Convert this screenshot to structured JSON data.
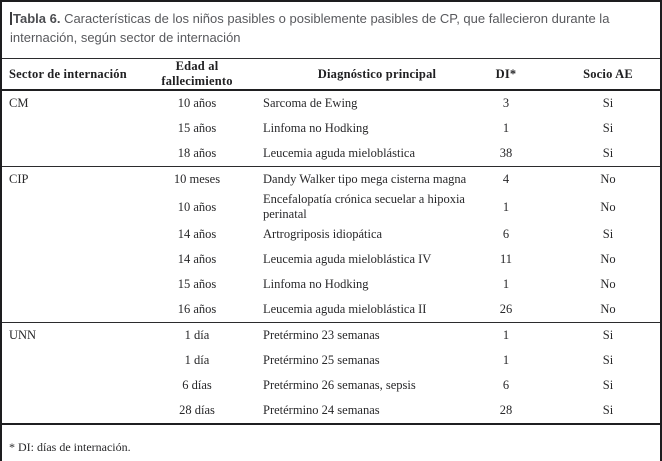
{
  "title": {
    "label": "Tabla 6.",
    "text": " Características de los niños pasibles o posiblemente pasibles de CP, que fallecieron durante la internación, según sector de internación"
  },
  "table": {
    "columns": [
      "Sector de internación",
      "Edad al fallecimiento",
      "Diagnóstico principal",
      "DI*",
      "Socio AE"
    ],
    "sections": [
      {
        "sector": "CM",
        "rows": [
          {
            "edad": "10 años",
            "diagnostico": "Sarcoma de Ewing",
            "di": "3",
            "socio": "Si"
          },
          {
            "edad": "15 años",
            "diagnostico": "Linfoma no Hodking",
            "di": "1",
            "socio": "Si"
          },
          {
            "edad": "18 años",
            "diagnostico": "Leucemia aguda mieloblástica",
            "di": "38",
            "socio": "Si"
          }
        ]
      },
      {
        "sector": "CIP",
        "rows": [
          {
            "edad": "10 meses",
            "diagnostico": "Dandy Walker tipo mega cisterna magna",
            "di": "4",
            "socio": "No"
          },
          {
            "edad": "10 años",
            "diagnostico": "Encefalopatía crónica secuelar a hipoxia perinatal",
            "di": "1",
            "socio": "No"
          },
          {
            "edad": "14 años",
            "diagnostico": "Artrogriposis idiopática",
            "di": "6",
            "socio": "Si"
          },
          {
            "edad": "14 años",
            "diagnostico": "Leucemia aguda mieloblástica IV",
            "di": "11",
            "socio": "No"
          },
          {
            "edad": "15 años",
            "diagnostico": "Linfoma no Hodking",
            "di": "1",
            "socio": "No"
          },
          {
            "edad": "16 años",
            "diagnostico": "Leucemia aguda mieloblástica II",
            "di": "26",
            "socio": "No"
          }
        ]
      },
      {
        "sector": "UNN",
        "rows": [
          {
            "edad": "1 día",
            "diagnostico": "Pretérmino 23 semanas",
            "di": "1",
            "socio": "Si"
          },
          {
            "edad": "1 día",
            "diagnostico": "Pretérmino 25 semanas",
            "di": "1",
            "socio": "Si"
          },
          {
            "edad": "6 días",
            "diagnostico": "Pretérmino 26 semanas, sepsis",
            "di": "6",
            "socio": "Si"
          },
          {
            "edad": "28 días",
            "diagnostico": "Pretérmino 24 semanas",
            "di": "28",
            "socio": "Si"
          }
        ]
      }
    ]
  },
  "footnote": "* DI: días de internación."
}
